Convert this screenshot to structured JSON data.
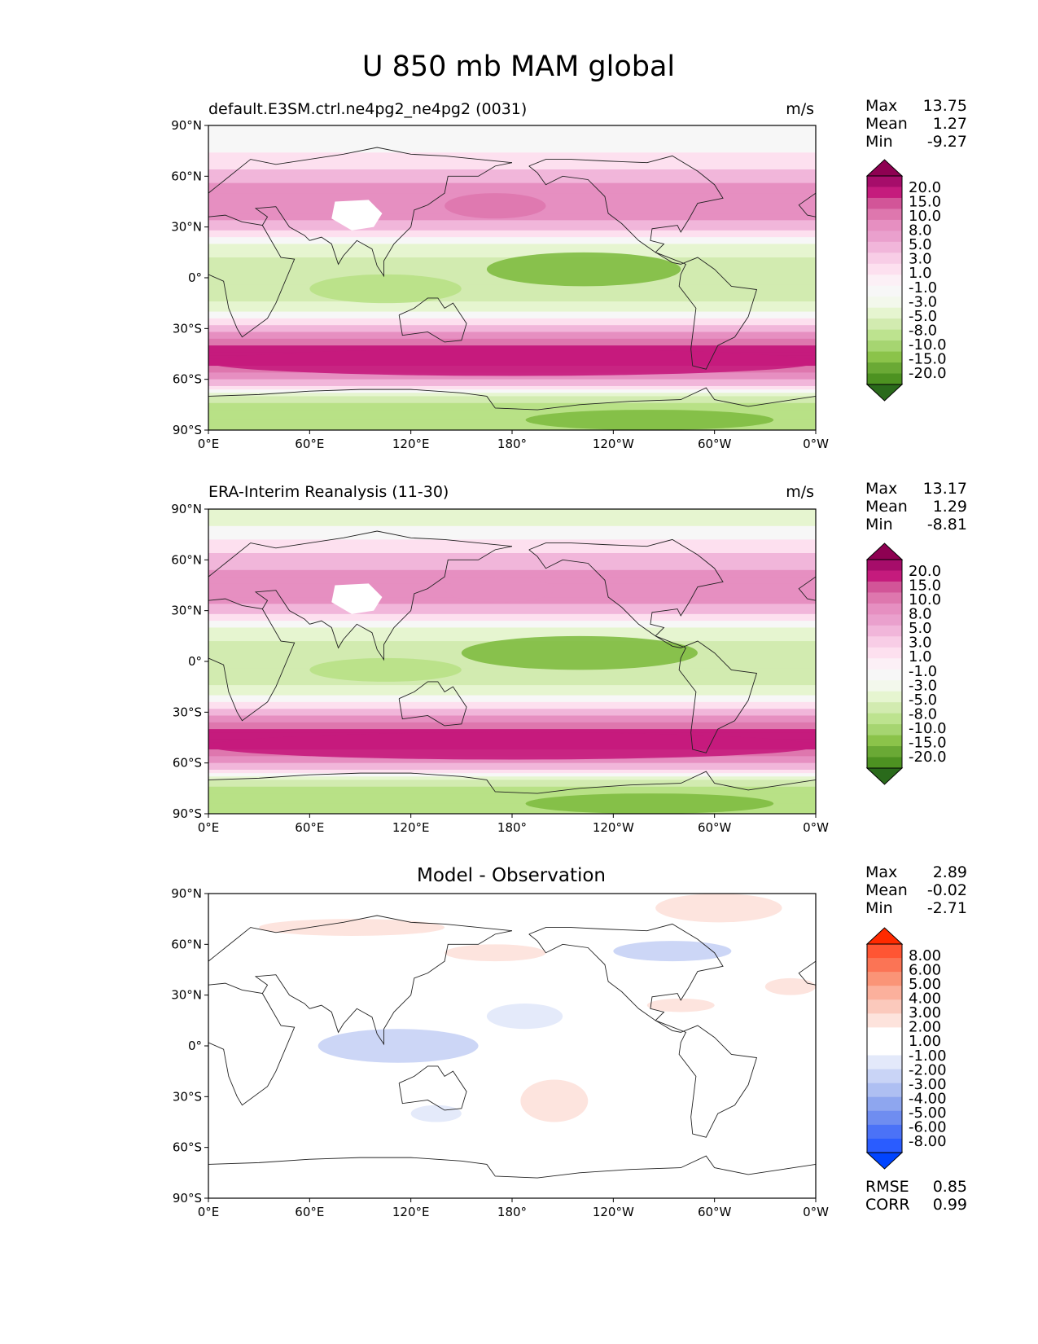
{
  "figure": {
    "title": "U 850 mb MAM global"
  },
  "colors": {
    "test_ref_levels": [
      "#276419",
      "#4d9221",
      "#7fbc41",
      "#b8e186",
      "#d2ebb0",
      "#e6f5d0",
      "#f7f7f7",
      "#fde0ef",
      "#f1b6da",
      "#e68fc1",
      "#de77ae",
      "#c51b7d",
      "#8e0152"
    ],
    "test_ref_cmap": [
      "#2a6a1b",
      "#4d9221",
      "#6aa935",
      "#8bc34a",
      "#a6d571",
      "#bde38f",
      "#d2ebb0",
      "#e6f5d0",
      "#f3f8ec",
      "#f7f7f7",
      "#fcf0f6",
      "#fde0ef",
      "#f8cde6",
      "#f1b6da",
      "#eaa0cd",
      "#e68fc1",
      "#de77ae",
      "#d25598",
      "#c51b7d",
      "#a60d6a",
      "#8e0152"
    ],
    "diff_cmap": [
      "#0044ff",
      "#2a5cff",
      "#4b72f7",
      "#6f8df0",
      "#8ea6ef",
      "#aebff2",
      "#c9d4f6",
      "#e3e9fa",
      "#ffffff",
      "#ffffff",
      "#fde3dc",
      "#fbc9bc",
      "#fbb09c",
      "#fa9477",
      "#fb7455",
      "#ff5533",
      "#ff2a00"
    ],
    "map_background": "#f7f7f7",
    "diff_background": "#ffffff"
  },
  "axes_ticks": {
    "lat_labels": [
      "90°N",
      "60°N",
      "30°N",
      "0°",
      "30°S",
      "60°S",
      "90°S"
    ],
    "lon_labels": [
      "0°E",
      "60°E",
      "120°E",
      "180°",
      "120°W",
      "60°W",
      "0°W"
    ]
  },
  "chart_data": [
    {
      "type": "heatmap",
      "panel": "test",
      "title_left": "default.E3SM.ctrl.ne4pg2_ne4pg2 (0031)",
      "title_right": "m/s",
      "stats": {
        "max_label": "Max",
        "max": "13.75",
        "mean_label": "Mean",
        "mean": "1.27",
        "min_label": "Min",
        "min": "-9.27"
      },
      "colorbar_levels": [
        "20.0",
        "15.0",
        "10.0",
        "8.0",
        "5.0",
        "3.0",
        "1.0",
        "-1.0",
        "-3.0",
        "-5.0",
        "-8.0",
        "-10.0",
        "-15.0",
        "-20.0"
      ],
      "x_range": [
        0,
        360
      ],
      "y_range": [
        -90,
        90
      ],
      "zonal_profile": {
        "lat": [
          80,
          70,
          60,
          50,
          40,
          30,
          20,
          10,
          0,
          -10,
          -20,
          -30,
          -40,
          -45,
          -50,
          -55,
          -60,
          -65,
          -70,
          -80
        ],
        "u": [
          -0.5,
          2,
          4,
          6.5,
          7,
          4,
          -1.5,
          -3.5,
          -5,
          -4,
          -1,
          4,
          10,
          11,
          11,
          9,
          5,
          2,
          -3,
          -7
        ]
      },
      "features": [
        {
          "name": "central-pacific-easterlies",
          "lon": [
            165,
            280
          ],
          "lat": [
            -5,
            15
          ],
          "u": -9
        },
        {
          "name": "indian-ocean-easterlies",
          "lon": [
            60,
            150
          ],
          "lat": [
            -15,
            2
          ],
          "u": -7
        },
        {
          "name": "north-pacific-westerlies",
          "lon": [
            140,
            200
          ],
          "lat": [
            35,
            50
          ],
          "u": 9
        },
        {
          "name": "southern-jet",
          "lon": [
            0,
            360
          ],
          "lat": [
            -58,
            -42
          ],
          "u": 12
        },
        {
          "name": "antarctic-easterlies",
          "lon": [
            188,
            335
          ],
          "lat": [
            -90,
            -78
          ],
          "u": -8
        }
      ]
    },
    {
      "type": "heatmap",
      "panel": "reference",
      "title_left": "ERA-Interim Reanalysis (11-30)",
      "title_right": "m/s",
      "stats": {
        "max_label": "Max",
        "max": "13.17",
        "mean_label": "Mean",
        "mean": "1.29",
        "min_label": "Min",
        "min": "-8.81"
      },
      "colorbar_levels": [
        "20.0",
        "15.0",
        "10.0",
        "8.0",
        "5.0",
        "3.0",
        "1.0",
        "-1.0",
        "-3.0",
        "-5.0",
        "-8.0",
        "-10.0",
        "-15.0",
        "-20.0"
      ],
      "x_range": [
        0,
        360
      ],
      "y_range": [
        -90,
        90
      ],
      "zonal_profile": {
        "lat": [
          80,
          70,
          60,
          50,
          40,
          30,
          20,
          10,
          0,
          -10,
          -20,
          -30,
          -40,
          -45,
          -50,
          -55,
          -60,
          -65,
          -70,
          -80
        ],
        "u": [
          -1,
          1.5,
          4,
          6,
          6.5,
          4,
          -1.5,
          -3.5,
          -5,
          -4,
          -1,
          4,
          10,
          11,
          11,
          9,
          5,
          2,
          -3,
          -7
        ]
      },
      "features": [
        {
          "name": "central-pacific-easterlies",
          "lon": [
            150,
            290
          ],
          "lat": [
            -5,
            15
          ],
          "u": -9
        },
        {
          "name": "indian-ocean-easterlies",
          "lon": [
            60,
            150
          ],
          "lat": [
            -12,
            2
          ],
          "u": -6
        },
        {
          "name": "north-pacific-westerlies",
          "lon": [
            140,
            205
          ],
          "lat": [
            35,
            50
          ],
          "u": 8
        },
        {
          "name": "southern-jet",
          "lon": [
            0,
            360
          ],
          "lat": [
            -58,
            -42
          ],
          "u": 12
        },
        {
          "name": "antarctic-easterlies",
          "lon": [
            188,
            335
          ],
          "lat": [
            -90,
            -78
          ],
          "u": -8
        }
      ]
    },
    {
      "type": "heatmap",
      "panel": "difference",
      "title_center": "Model - Observation",
      "stats": {
        "max_label": "Max",
        "max": "2.89",
        "mean_label": "Mean",
        "mean": "-0.02",
        "min_label": "Min",
        "min": "-2.71"
      },
      "metrics": {
        "rmse_label": "RMSE",
        "rmse": "0.85",
        "corr_label": "CORR",
        "corr": "0.99"
      },
      "colorbar_levels": [
        "8.00",
        "6.00",
        "5.00",
        "4.00",
        "3.00",
        "2.00",
        "1.00",
        "-1.00",
        "-2.00",
        "-3.00",
        "-4.00",
        "-5.00",
        "-6.00",
        "-8.00"
      ],
      "x_range": [
        0,
        360
      ],
      "y_range": [
        -90,
        90
      ],
      "anomalies": [
        {
          "name": "arctic-canada-positive",
          "lon": [
            265,
            340
          ],
          "lat": [
            73,
            90
          ],
          "u": 1.5
        },
        {
          "name": "eurasia-positive",
          "lon": [
            30,
            140
          ],
          "lat": [
            65,
            75
          ],
          "u": 1.2
        },
        {
          "name": "north-pacific-positive",
          "lon": [
            140,
            200
          ],
          "lat": [
            50,
            60
          ],
          "u": 1.2
        },
        {
          "name": "north-america-negative",
          "lon": [
            240,
            310
          ],
          "lat": [
            50,
            62
          ],
          "u": -2
        },
        {
          "name": "central-pacific-negative",
          "lon": [
            165,
            210
          ],
          "lat": [
            10,
            25
          ],
          "u": -1.5
        },
        {
          "name": "maritime-negative",
          "lon": [
            65,
            160
          ],
          "lat": [
            -10,
            10
          ],
          "u": -2.5
        },
        {
          "name": "south-pacific-positive",
          "lon": [
            185,
            225
          ],
          "lat": [
            -45,
            -20
          ],
          "u": 1.2
        },
        {
          "name": "australia-negative",
          "lon": [
            120,
            150
          ],
          "lat": [
            -45,
            -35
          ],
          "u": -1.2
        },
        {
          "name": "north-atlantic-positive",
          "lon": [
            330,
            360
          ],
          "lat": [
            30,
            40
          ],
          "u": 1.2
        },
        {
          "name": "subtropical-pacific-positive",
          "lon": [
            260,
            300
          ],
          "lat": [
            20,
            28
          ],
          "u": 1.2
        }
      ]
    }
  ]
}
